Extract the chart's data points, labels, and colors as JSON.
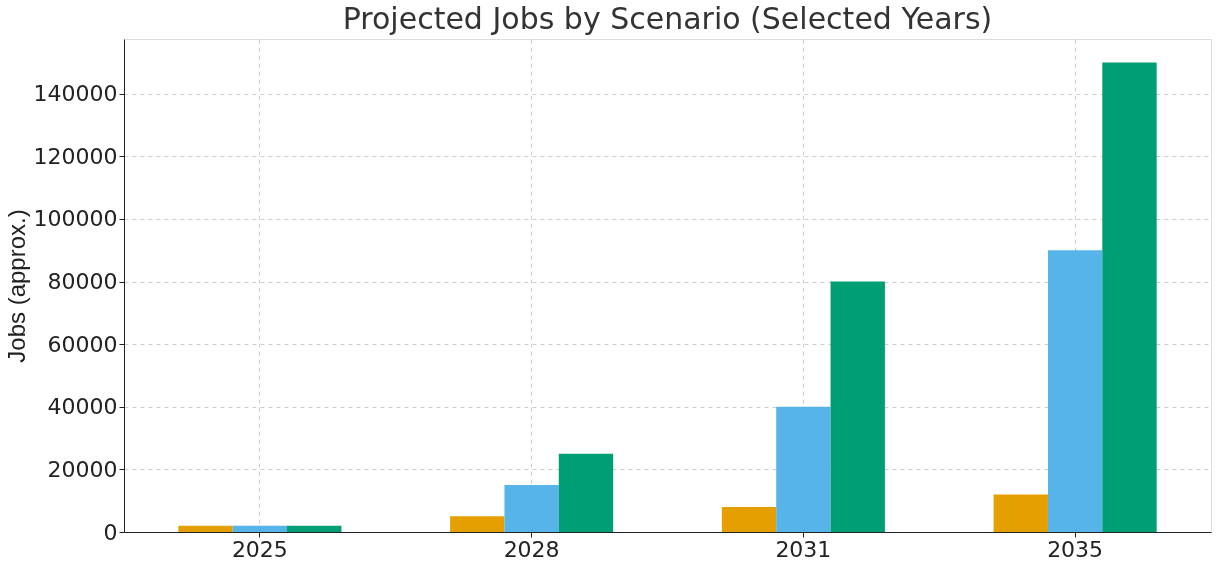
{
  "chart_data": {
    "type": "bar",
    "title": "Projected Jobs by Scenario (Selected Years)",
    "ylabel": "Jobs (approx.)",
    "categories": [
      "2025",
      "2028",
      "2031",
      "2035"
    ],
    "series": [
      {
        "color": "#e69f00",
        "values": [
          2000,
          5000,
          8000,
          12000
        ]
      },
      {
        "color": "#56b4e9",
        "values": [
          2000,
          15000,
          40000,
          90000
        ]
      },
      {
        "color": "#009e73",
        "values": [
          2000,
          25000,
          80000,
          150000
        ]
      }
    ],
    "ylim": [
      0,
      157500
    ],
    "yticks": [
      0,
      20000,
      40000,
      60000,
      80000,
      100000,
      120000,
      140000
    ],
    "grid": true
  }
}
